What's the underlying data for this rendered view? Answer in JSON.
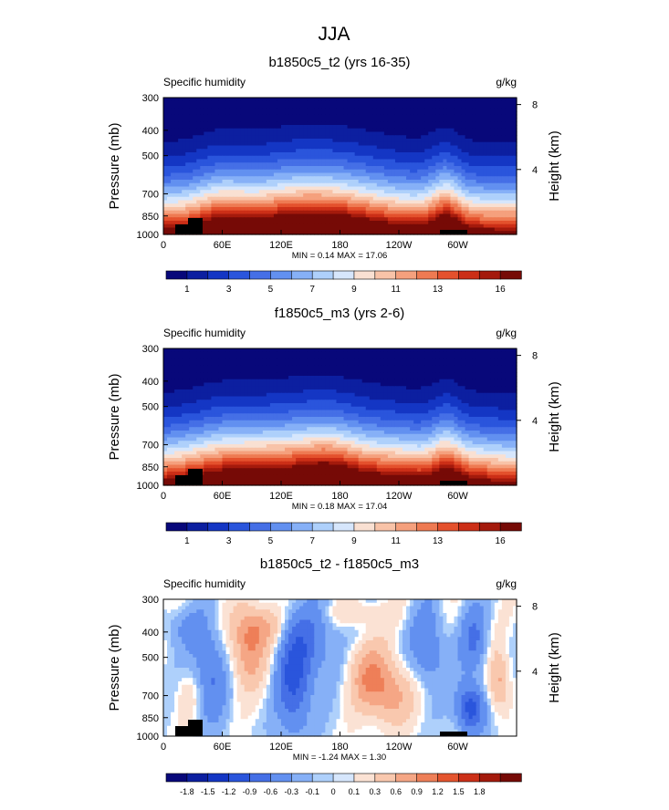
{
  "title": "JJA",
  "chart_data": [
    {
      "type": "heatmap",
      "title": "b1850c5_t2 (yrs 16-35)",
      "left_label": "Specific humidity",
      "right_label": "g/kg",
      "ylabel": "Pressure (mb)",
      "ylabel_right": "Height (km)",
      "x_ticks": [
        "0",
        "60E",
        "120E",
        "180",
        "120W",
        "60W"
      ],
      "y_ticks": [
        "300",
        "400",
        "500",
        "700",
        "850",
        "1000"
      ],
      "y_right_ticks": [
        "8",
        "4"
      ],
      "stats": "MIN =  0.14  MAX =  17.06",
      "min": 0.14,
      "max": 17.06,
      "colorbar_labels": [
        "1",
        "3",
        "5",
        "7",
        "9",
        "11",
        "13",
        "16"
      ],
      "field": "full"
    },
    {
      "type": "heatmap",
      "title": "f1850c5_m3 (yrs 2-6)",
      "left_label": "Specific humidity",
      "right_label": "g/kg",
      "ylabel": "Pressure (mb)",
      "ylabel_right": "Height (km)",
      "x_ticks": [
        "0",
        "60E",
        "120E",
        "180",
        "120W",
        "60W"
      ],
      "y_ticks": [
        "300",
        "400",
        "500",
        "700",
        "850",
        "1000"
      ],
      "y_right_ticks": [
        "8",
        "4"
      ],
      "stats": "MIN =  0.18  MAX =  17.04",
      "min": 0.18,
      "max": 17.04,
      "colorbar_labels": [
        "1",
        "3",
        "5",
        "7",
        "9",
        "11",
        "13",
        "16"
      ],
      "field": "full"
    },
    {
      "type": "heatmap",
      "title": "b1850c5_t2 - f1850c5_m3",
      "left_label": "Specific humidity",
      "right_label": "g/kg",
      "ylabel": "Pressure (mb)",
      "ylabel_right": "Height (km)",
      "x_ticks": [
        "0",
        "60E",
        "120E",
        "180",
        "120W",
        "60W"
      ],
      "y_ticks": [
        "300",
        "400",
        "500",
        "700",
        "850",
        "1000"
      ],
      "y_right_ticks": [
        "8",
        "4"
      ],
      "stats": "MIN = -1.24  MAX =  1.30",
      "min": -1.24,
      "max": 1.3,
      "colorbar_labels": [
        "-1.8",
        "-1.5",
        "-1.2",
        "-0.9",
        "-0.6",
        "-0.3",
        "-0.1",
        "0",
        "0.1",
        "0.3",
        "0.6",
        "0.9",
        "1.2",
        "1.5",
        "1.8"
      ],
      "field": "diff"
    }
  ],
  "palettes": {
    "full": [
      "#08087a",
      "#0c1fa0",
      "#1436c4",
      "#2a55dc",
      "#456fe6",
      "#6290f0",
      "#86b0f7",
      "#aed0fb",
      "#d6e6fc",
      "#f9e0d2",
      "#f8c3a8",
      "#f5a07d",
      "#ee7a52",
      "#e4512d",
      "#cc2f17",
      "#a41a0c",
      "#760a06"
    ],
    "diff": [
      "#08087a",
      "#0c1fa0",
      "#1436c4",
      "#2a55dc",
      "#456fe6",
      "#6290f0",
      "#86b0f7",
      "#aed0fb",
      "#d6e6fc",
      "#fbe2d4",
      "#f9c8ae",
      "#f5a685",
      "#ee7f58",
      "#e4552f",
      "#cc3018",
      "#a41a0c",
      "#760a06"
    ]
  }
}
